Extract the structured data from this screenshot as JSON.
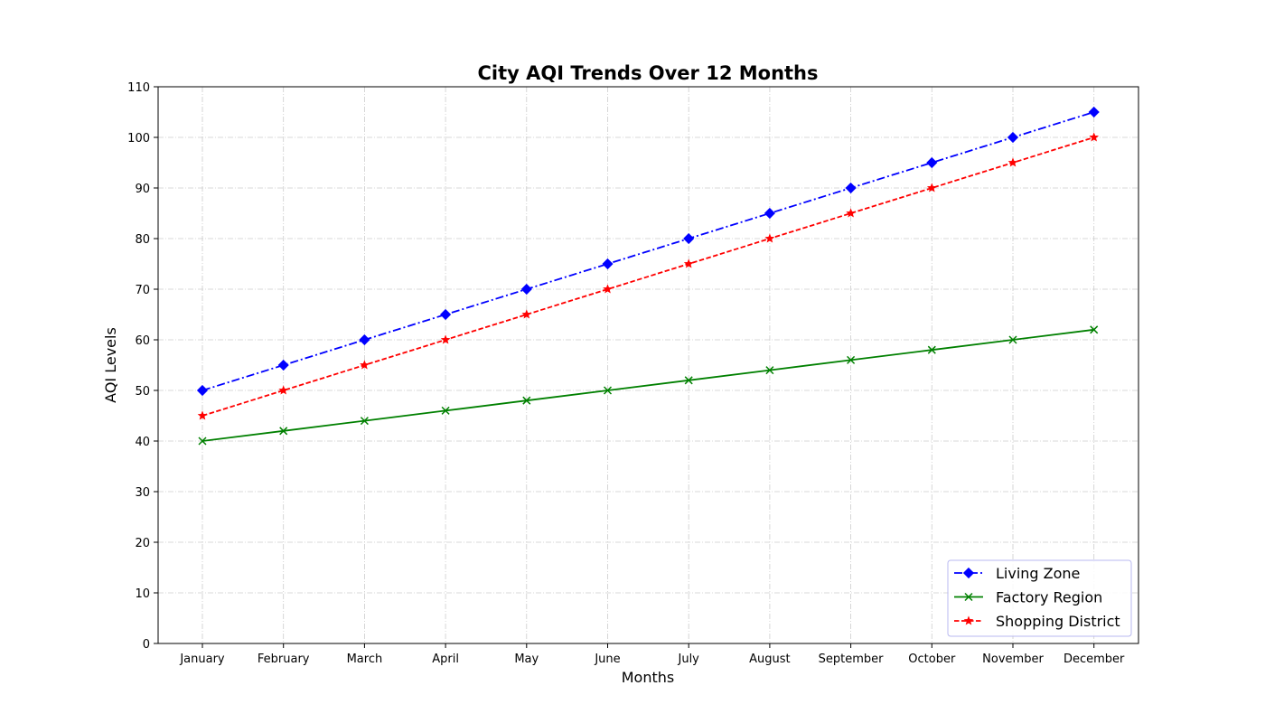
{
  "chart_data": {
    "type": "line",
    "title": "City AQI Trends Over 12 Months",
    "xlabel": "Months",
    "ylabel": "AQI Levels",
    "categories": [
      "January",
      "February",
      "March",
      "April",
      "May",
      "June",
      "July",
      "August",
      "September",
      "October",
      "November",
      "December"
    ],
    "ylim": [
      0,
      110
    ],
    "yticks": [
      0,
      10,
      20,
      30,
      40,
      50,
      60,
      70,
      80,
      90,
      100,
      110
    ],
    "grid": true,
    "legend_position": "bottom-right",
    "series": [
      {
        "name": "Living Zone",
        "color": "#0000ff",
        "marker": "diamond",
        "linestyle": "dashdot",
        "values": [
          50,
          55,
          60,
          65,
          70,
          75,
          80,
          85,
          90,
          95,
          100,
          105
        ]
      },
      {
        "name": "Factory Region",
        "color": "#008000",
        "marker": "x",
        "linestyle": "solid",
        "values": [
          40,
          42,
          44,
          46,
          48,
          50,
          52,
          54,
          56,
          58,
          60,
          62
        ]
      },
      {
        "name": "Shopping District",
        "color": "#ff0000",
        "marker": "star",
        "linestyle": "dashed",
        "values": [
          45,
          50,
          55,
          60,
          65,
          70,
          75,
          80,
          85,
          90,
          95,
          100
        ]
      }
    ]
  }
}
